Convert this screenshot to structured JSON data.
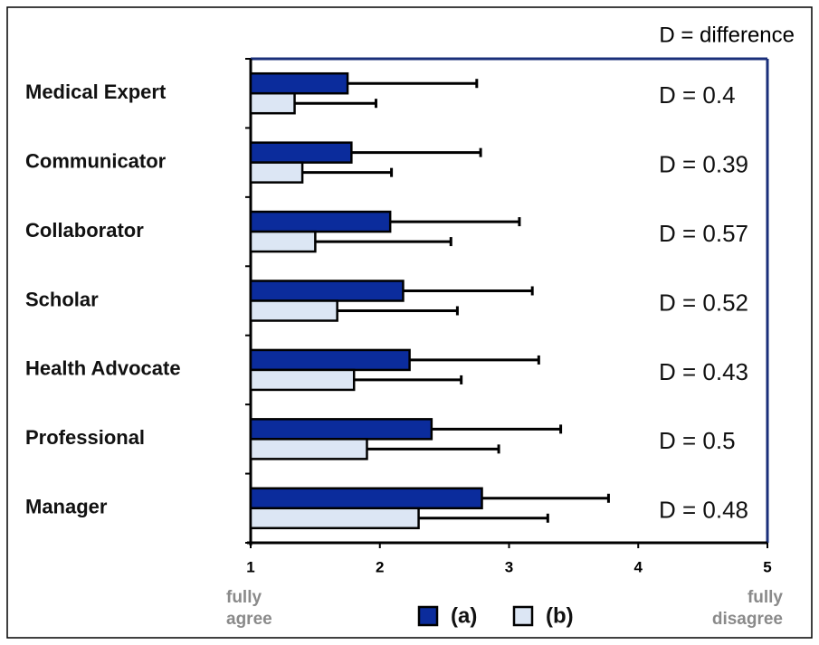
{
  "chart_data": {
    "type": "bar",
    "orientation": "horizontal",
    "note": "D = difference",
    "categories": [
      "Medical Expert",
      "Communicator",
      "Collaborator",
      "Scholar",
      "Health Advocate",
      "Professional",
      "Manager"
    ],
    "series": [
      {
        "name": "(a)",
        "color": "#0b2c9c",
        "values": [
          1.75,
          1.78,
          2.08,
          2.18,
          2.23,
          2.4,
          2.79
        ],
        "errors": [
          1.0,
          1.0,
          1.0,
          1.0,
          1.0,
          1.0,
          0.98
        ]
      },
      {
        "name": "(b)",
        "color": "#dce6f4",
        "values": [
          1.34,
          1.4,
          1.5,
          1.67,
          1.8,
          1.9,
          2.3
        ],
        "errors": [
          0.63,
          0.69,
          1.05,
          0.93,
          0.83,
          1.02,
          1.0
        ]
      }
    ],
    "annotations": [
      "D = 0.4",
      "D = 0.39",
      "D = 0.57",
      "D = 0.52",
      "D = 0.43",
      "D = 0.5",
      "D = 0.48"
    ],
    "xlabel_left": [
      "fully",
      "agree"
    ],
    "xlabel_right": [
      "fully",
      "disagree"
    ],
    "xlim": [
      1,
      5
    ],
    "xticks": [
      1,
      2,
      3,
      4,
      5
    ]
  }
}
